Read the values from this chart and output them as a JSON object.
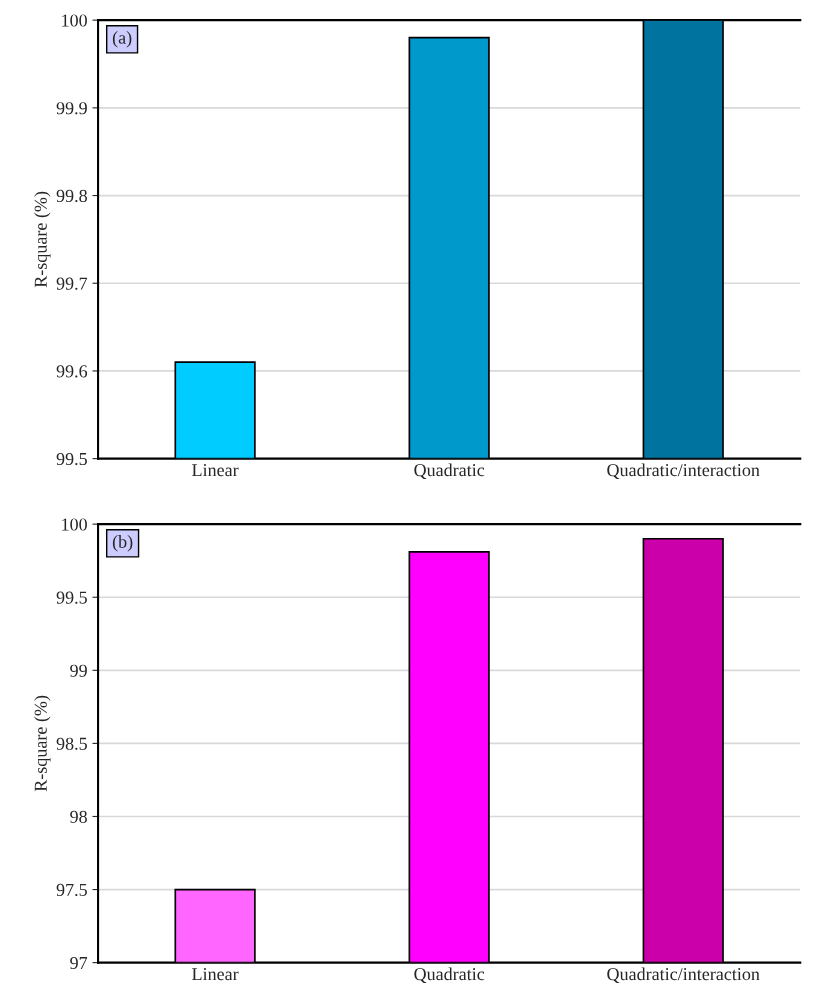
{
  "chart_data": [
    {
      "type": "bar",
      "categories": [
        "Linear",
        "Quadratic",
        "Quadratic/interaction"
      ],
      "colors": [
        "#00ccff",
        "#0099cc",
        "#00749e"
      ],
      "values": [
        99.61,
        99.98,
        100
      ],
      "ylabel": "R-square (%)",
      "ylim": [
        99.5,
        100
      ],
      "yticks": [
        {
          "value": 99.5,
          "label": "99.5"
        },
        {
          "value": 99.6,
          "label": "99.6"
        },
        {
          "value": 99.7,
          "label": "99.7"
        },
        {
          "value": 99.8,
          "label": "99.8"
        },
        {
          "value": 99.9,
          "label": "99.9"
        },
        {
          "value": 100,
          "label": "100"
        }
      ],
      "grid": "y",
      "annotations": [
        "(a)"
      ]
    },
    {
      "type": "bar",
      "categories": [
        "Linear",
        "Quadratic",
        "Quadratic/interaction"
      ],
      "colors": [
        "#ff66ff",
        "#ff00ff",
        "#cc00aa"
      ],
      "values": [
        97.5,
        99.81,
        99.9
      ],
      "ylabel": "R-square (%)",
      "ylim": [
        97,
        100
      ],
      "yticks": [
        97,
        97.5,
        98,
        98.5,
        99,
        99.5,
        100
      ],
      "grid": "y",
      "annotations": [
        "(b)"
      ]
    }
  ]
}
